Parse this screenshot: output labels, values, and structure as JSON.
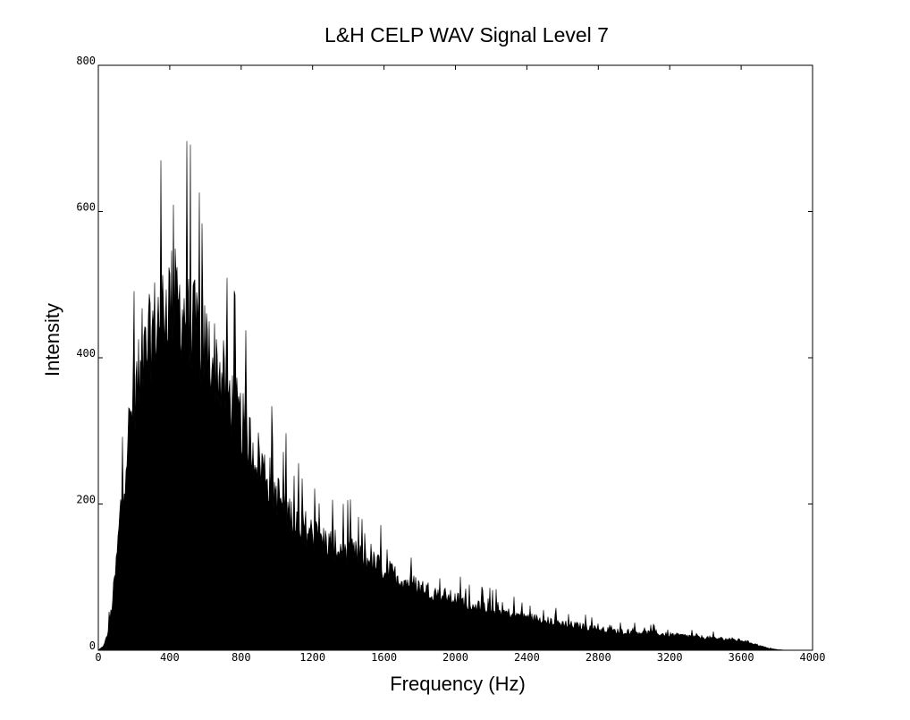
{
  "chart_data": {
    "type": "area",
    "title": "L&H CELP WAV Signal Level 7",
    "xlabel": "Frequency (Hz)",
    "ylabel": "Intensity",
    "xlim": [
      0,
      4000
    ],
    "ylim": [
      0,
      800
    ],
    "x_ticks": [
      "0",
      "400",
      "800",
      "1200",
      "1600",
      "2000",
      "2400",
      "2800",
      "3200",
      "3600",
      "4000"
    ],
    "y_ticks": [
      "0",
      "200",
      "400",
      "600",
      "800"
    ],
    "grid": false,
    "fill_color": "#000000",
    "series": [
      {
        "x": [
          0,
          25,
          50,
          75,
          100,
          125,
          150,
          175,
          200,
          250,
          300,
          350,
          400,
          450,
          500,
          550,
          600,
          650,
          700,
          750,
          800,
          850,
          900,
          950,
          1000,
          1050,
          1100,
          1200,
          1300,
          1400,
          1500,
          1600,
          1700,
          1800,
          1900,
          2000,
          2100,
          2200,
          2300,
          2400,
          2500,
          2600,
          2700,
          2800,
          2900,
          3000,
          3100,
          3200,
          3300,
          3400,
          3500,
          3600,
          3650,
          3700,
          3750,
          3800,
          3850,
          4000
        ],
        "values": [
          0,
          5,
          20,
          60,
          120,
          200,
          260,
          320,
          360,
          400,
          450,
          480,
          500,
          490,
          470,
          450,
          430,
          410,
          380,
          350,
          320,
          295,
          270,
          245,
          220,
          200,
          185,
          165,
          150,
          140,
          128,
          115,
          100,
          90,
          80,
          72,
          64,
          58,
          52,
          47,
          42,
          38,
          34,
          30,
          27,
          26,
          24,
          22,
          20,
          18,
          16,
          14,
          11,
          7,
          3,
          1,
          0,
          0
        ]
      }
    ]
  }
}
